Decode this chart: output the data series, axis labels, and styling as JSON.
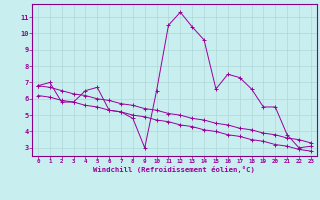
{
  "xlabel": "Windchill (Refroidissement éolien,°C)",
  "background_color": "#c8eef0",
  "grid_color": "#b0d8d8",
  "line_color": "#990099",
  "spine_color": "#880088",
  "xlim": [
    -0.5,
    23.5
  ],
  "ylim": [
    2.5,
    11.8
  ],
  "yticks": [
    3,
    4,
    5,
    6,
    7,
    8,
    9,
    10,
    11
  ],
  "xticks": [
    0,
    1,
    2,
    3,
    4,
    5,
    6,
    7,
    8,
    9,
    10,
    11,
    12,
    13,
    14,
    15,
    16,
    17,
    18,
    19,
    20,
    21,
    22,
    23
  ],
  "series": [
    {
      "x": [
        0,
        1,
        2,
        3,
        4,
        5,
        6,
        7,
        8,
        9,
        10,
        11,
        12,
        13,
        14,
        15,
        16,
        17,
        18,
        19,
        20,
        21,
        22,
        23
      ],
      "y": [
        6.8,
        7.0,
        5.8,
        5.8,
        6.5,
        6.7,
        5.3,
        5.2,
        4.8,
        3.0,
        6.5,
        10.5,
        11.3,
        10.4,
        9.6,
        6.6,
        7.5,
        7.3,
        6.6,
        5.5,
        5.5,
        3.8,
        3.0,
        3.1
      ]
    },
    {
      "x": [
        0,
        1,
        2,
        3,
        4,
        5,
        6,
        7,
        8,
        9,
        10,
        11,
        12,
        13,
        14,
        15,
        16,
        17,
        18,
        19,
        20,
        21,
        22,
        23
      ],
      "y": [
        6.8,
        6.7,
        6.5,
        6.3,
        6.2,
        6.0,
        5.9,
        5.7,
        5.6,
        5.4,
        5.3,
        5.1,
        5.0,
        4.8,
        4.7,
        4.5,
        4.4,
        4.2,
        4.1,
        3.9,
        3.8,
        3.6,
        3.5,
        3.3
      ]
    },
    {
      "x": [
        0,
        1,
        2,
        3,
        4,
        5,
        6,
        7,
        8,
        9,
        10,
        11,
        12,
        13,
        14,
        15,
        16,
        17,
        18,
        19,
        20,
        21,
        22,
        23
      ],
      "y": [
        6.2,
        6.1,
        5.9,
        5.8,
        5.6,
        5.5,
        5.3,
        5.2,
        5.0,
        4.9,
        4.7,
        4.6,
        4.4,
        4.3,
        4.1,
        4.0,
        3.8,
        3.7,
        3.5,
        3.4,
        3.2,
        3.1,
        2.9,
        2.8
      ]
    }
  ]
}
